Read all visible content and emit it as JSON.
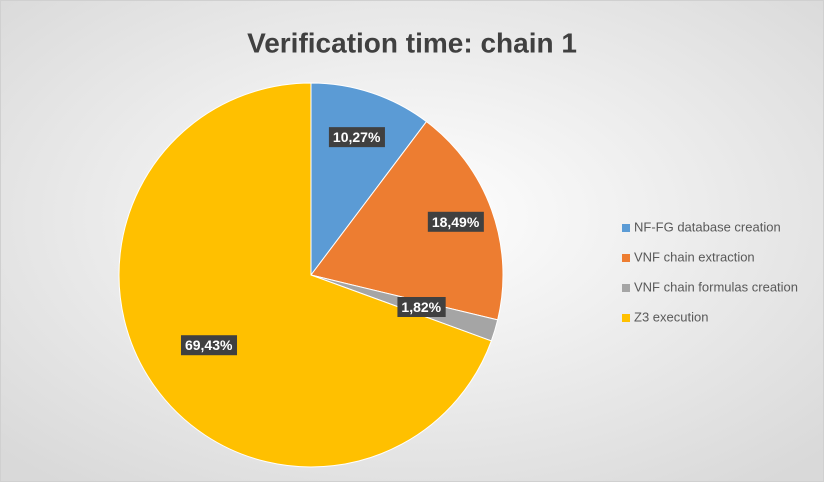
{
  "chart_data": {
    "type": "pie",
    "title": "Verification time: chain 1",
    "categories": [
      "NF-FG database creation",
      "VNF chain extraction",
      "VNF chain formulas creation",
      "Z3 execution"
    ],
    "values": [
      10.27,
      18.49,
      1.82,
      69.43
    ],
    "value_labels": [
      "10,27%",
      "18,49%",
      "1,82%",
      "69,43%"
    ],
    "colors": [
      "#5b9bd5",
      "#ed7d31",
      "#a5a5a5",
      "#ffc000"
    ],
    "legend": "right"
  }
}
